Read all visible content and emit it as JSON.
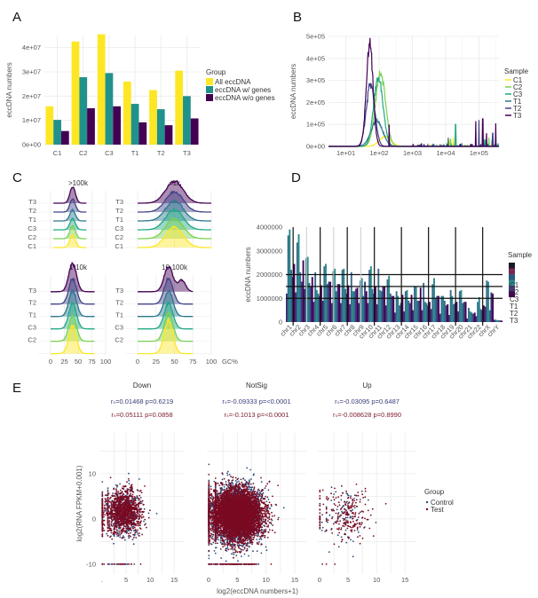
{
  "panels": {
    "A": "A",
    "B": "B",
    "C": "C",
    "D": "D",
    "E": "E"
  },
  "chart_data": [
    {
      "id": "A",
      "type": "bar",
      "title": "",
      "xlabel": "",
      "ylabel": "eccDNA numbers",
      "categories": [
        "C1",
        "C2",
        "C3",
        "T1",
        "T2",
        "T3"
      ],
      "ylim": [
        0,
        45000000
      ],
      "yticks": [
        0,
        10000000,
        20000000,
        30000000,
        40000000
      ],
      "ytick_labels": [
        "0e+00",
        "1e+07",
        "2e+07",
        "3e+07",
        "4e+07"
      ],
      "legend_title": "Group",
      "legend_position": "right",
      "grid": true,
      "series": [
        {
          "name": "All eccDNA",
          "color": "#fde725",
          "values": [
            15800000,
            42500000,
            45500000,
            26000000,
            22500000,
            30500000
          ]
        },
        {
          "name": "eccDNA w/ genes",
          "color": "#21918c",
          "values": [
            10200000,
            27800000,
            29500000,
            16800000,
            14600000,
            20000000
          ]
        },
        {
          "name": "eccDNA w/o genes",
          "color": "#440154",
          "values": [
            5600000,
            15000000,
            15800000,
            9200000,
            8000000,
            10800000
          ]
        }
      ]
    },
    {
      "id": "B",
      "type": "line",
      "xlabel": "",
      "ylabel": "eccDNA numbers",
      "xscale": "log10",
      "xlim": [
        3,
        400000
      ],
      "xticks": [
        10,
        100,
        1000,
        10000,
        100000
      ],
      "xtick_labels": [
        "1e+01",
        "1e+02",
        "1e+03",
        "1e+04",
        "1e+05"
      ],
      "ylim": [
        0,
        500000
      ],
      "yticks": [
        0,
        100000,
        200000,
        300000,
        400000,
        500000
      ],
      "ytick_labels": [
        "0e+00",
        "1e+05",
        "2e+05",
        "3e+05",
        "4e+05",
        "5e+05"
      ],
      "legend_title": "Sample",
      "legend_position": "right",
      "grid": true,
      "series": [
        {
          "name": "C1",
          "color": "#fde725",
          "peak_x": 150,
          "peak_y": 45000,
          "width": 0.35,
          "spikes": [
            [
              13000,
              30000
            ],
            [
              17000,
              40000
            ]
          ]
        },
        {
          "name": "C2",
          "color": "#7ad151",
          "peak_x": 110,
          "peak_y": 340000,
          "width": 0.3,
          "spikes": [
            [
              14000,
              35000
            ],
            [
              200000,
              40000
            ]
          ]
        },
        {
          "name": "C3",
          "color": "#22a884",
          "peak_x": 95,
          "peak_y": 320000,
          "width": 0.28,
          "spikes": [
            [
              20000,
              100000
            ],
            [
              150000,
              30000
            ]
          ]
        },
        {
          "name": "T1",
          "color": "#2a788e",
          "peak_x": 85,
          "peak_y": 120000,
          "width": 0.35,
          "spikes": [
            [
              12000,
              40000
            ],
            [
              250000,
              30000
            ]
          ]
        },
        {
          "name": "T2",
          "color": "#414487",
          "peak_x": 55,
          "peak_y": 290000,
          "width": 0.25,
          "spikes": [
            [
              100000,
              120000
            ],
            [
              260000,
              60000
            ]
          ]
        },
        {
          "name": "T3",
          "color": "#440154",
          "peak_x": 52,
          "peak_y": 480000,
          "width": 0.2,
          "spikes": [
            [
              80000,
              115000
            ],
            [
              130000,
              125000
            ],
            [
              170000,
              60000
            ],
            [
              320000,
              105000
            ],
            [
              200,
              100000
            ]
          ]
        }
      ]
    },
    {
      "id": "C",
      "type": "area",
      "subtype": "ridgeline",
      "xlabel": "GC%",
      "xlim": [
        0,
        100
      ],
      "xticks": [
        0,
        25,
        50,
        75,
        100
      ],
      "xtick_labels": [
        "0",
        "25",
        "50",
        "75",
        "100"
      ],
      "samples": [
        "C1",
        "C2",
        "C3",
        "T1",
        "T2",
        "T3"
      ],
      "colors": {
        "C1": "#fde725",
        "C2": "#7ad151",
        "C3": "#22a884",
        "T1": "#2a788e",
        "T2": "#414487",
        "T3": "#440154"
      },
      "facets": [
        {
          "title": ">100k",
          "ylabels": [
            "T3",
            "T2",
            "T1",
            "C3",
            "C2",
            "C1"
          ],
          "range": [
            5,
            65
          ],
          "peak": 40,
          "sd": 5,
          "heights": [
            0.7,
            0.7,
            0.6,
            0.6,
            0.7,
            0.9
          ]
        },
        {
          "title": "<1k",
          "ylabels": [
            "T3",
            "T2",
            "T1",
            "C3",
            "C2",
            "C1"
          ],
          "range": [
            0,
            100
          ],
          "peak": 50,
          "sd": 12,
          "heights": [
            1.1,
            1.1,
            1.1,
            1.1,
            1.1,
            1.2
          ]
        },
        {
          "title": "1-10k",
          "ylabels": [
            "T3",
            "T2",
            "T1",
            "C3",
            "C2",
            ""
          ],
          "range": [
            0,
            80
          ],
          "peak": 40,
          "sd": 7,
          "heights": [
            1.1,
            1.0,
            1.0,
            1.0,
            1.0,
            1.1
          ]
        },
        {
          "title": "10-100k",
          "ylabels": [
            "T3",
            "T2",
            "T1",
            "C3",
            "C2",
            ""
          ],
          "range": [
            0,
            75
          ],
          "peak": 42,
          "sd": 6,
          "heights": [
            1.3,
            1.1,
            1.0,
            1.0,
            1.0,
            1.0
          ]
        }
      ]
    },
    {
      "id": "D",
      "type": "bar",
      "xlabel": "",
      "ylabel": "eccDNA numbers",
      "categories": [
        "chr1",
        "chr2",
        "chr3",
        "chr4",
        "chr5",
        "chr6",
        "chr7",
        "chr8",
        "chr9",
        "chr10",
        "chr11",
        "chr12",
        "chr13",
        "chr14",
        "chr15",
        "chr16",
        "chr17",
        "chr18",
        "chr19",
        "chr20",
        "chr21",
        "chr22",
        "chrX",
        "chrY"
      ],
      "ylim": [
        0,
        4000000
      ],
      "yticks": [
        0,
        1000000,
        2000000,
        3000000,
        4000000
      ],
      "ytick_labels": [
        "0",
        "1000000",
        "2000000",
        "3000000",
        "4000000"
      ],
      "hlines": [
        1000000,
        1500000,
        2000000
      ],
      "legend_title": "Sample",
      "legend_labels": [
        "C1",
        "C2",
        "C3",
        "T1",
        "T2",
        "T3"
      ],
      "legend_colors": [
        "#1a1a2e",
        "#7a2a4e",
        "#2a5a7e",
        "#2a8a8a",
        "#4a3a7e",
        "#440154"
      ],
      "legend_position": "right",
      "series": [
        {
          "name": "C1",
          "color": "#3b2a6e",
          "values": [
            1200000,
            1250000,
            1400000,
            850000,
            900000,
            800000,
            800000,
            750000,
            800000,
            800000,
            750000,
            700000,
            400000,
            450000,
            500000,
            500000,
            550000,
            350000,
            300000,
            450000,
            150000,
            250000,
            650000,
            100000
          ]
        },
        {
          "name": "C2",
          "color": "#3a6a8e",
          "values": [
            3650000,
            3350000,
            2700000,
            2100000,
            2350000,
            2150000,
            2200000,
            2100000,
            1750000,
            2200000,
            2250000,
            1800000,
            1300000,
            1300000,
            1500000,
            1650000,
            1600000,
            1100000,
            1350000,
            1300000,
            600000,
            850000,
            1750000,
            100000
          ]
        },
        {
          "name": "C3",
          "color": "#2a8a8a",
          "values": [
            3900000,
            3700000,
            2750000,
            1350000,
            2450000,
            2250000,
            2250000,
            1300000,
            1850000,
            2350000,
            1350000,
            1950000,
            1100000,
            1350000,
            1500000,
            850000,
            1850000,
            1100000,
            1100000,
            1350000,
            450000,
            1050000,
            1700000,
            80000
          ]
        },
        {
          "name": "T1",
          "color": "#2f6e8a",
          "values": [
            2200000,
            2100000,
            1650000,
            1200000,
            1600000,
            1300000,
            1400000,
            1300000,
            1100000,
            1400000,
            1300000,
            1200000,
            700000,
            900000,
            900000,
            800000,
            1000000,
            900000,
            750000,
            800000,
            400000,
            550000,
            500000,
            80000
          ]
        },
        {
          "name": "T2",
          "color": "#3e3a7e",
          "values": [
            1900000,
            1700000,
            1500000,
            1100000,
            1700000,
            1600000,
            1200000,
            1400000,
            1700000,
            1200000,
            1500000,
            1100000,
            800000,
            800000,
            900000,
            700000,
            1100000,
            700000,
            800000,
            850000,
            350000,
            500000,
            1250000,
            70000
          ]
        },
        {
          "name": "T3",
          "color": "#440154",
          "values": [
            2450000,
            2600000,
            1900000,
            1550000,
            1700000,
            1600000,
            1550000,
            1450000,
            1300000,
            1500000,
            1500000,
            1100000,
            1150000,
            1150000,
            1450000,
            850000,
            1100000,
            750000,
            850000,
            850000,
            400000,
            700000,
            1200000,
            60000
          ]
        }
      ]
    },
    {
      "id": "E",
      "type": "scatter",
      "xlabel": "log2(eccDNA numbers+1)",
      "ylabel": "log2(RNA FPKM+0.001)",
      "xlim": [
        0,
        17
      ],
      "xticks": [
        0,
        5,
        10,
        15
      ],
      "ylim": [
        -11,
        19
      ],
      "yticks": [
        -10,
        0,
        10
      ],
      "ytick_labels": [
        "-10",
        "0",
        "10"
      ],
      "legend_title": "Group",
      "legend_position": "right",
      "groups": [
        {
          "name": "Control",
          "color": "#2c4a7a"
        },
        {
          "name": "Test",
          "color": "#7a0a22"
        }
      ],
      "facets": [
        {
          "title": "Down",
          "xtick_labels": [
            ".",
            "5",
            "10",
            "15"
          ],
          "stat_control": "rₛ=0.01468 p=0.6219",
          "stat_test": "rₛ=0.05111 p=0.0858",
          "density": "medium",
          "cx": 4.5,
          "cy": 1.5,
          "spread_x": 3,
          "spread_y": 2.5,
          "n": 1200
        },
        {
          "title": "NotSig",
          "xtick_labels": [
            "0",
            "5",
            "10",
            "15"
          ],
          "stat_control": "rₛ=-0.09333 p=<0.0001",
          "stat_test": "rₛ=-0.1013 p=<0.0001",
          "density": "high",
          "cx": 5,
          "cy": 1,
          "spread_x": 3.5,
          "spread_y": 3,
          "n": 6000
        },
        {
          "title": "Up",
          "xtick_labels": [
            "0",
            "5",
            "10",
            "15"
          ],
          "stat_control": "rₛ=-0.03095 p=0.6487",
          "stat_test": "rₛ=-0.008628 p=0.8990",
          "density": "low",
          "cx": 5,
          "cy": 1,
          "spread_x": 3,
          "spread_y": 3,
          "n": 220
        }
      ]
    }
  ]
}
